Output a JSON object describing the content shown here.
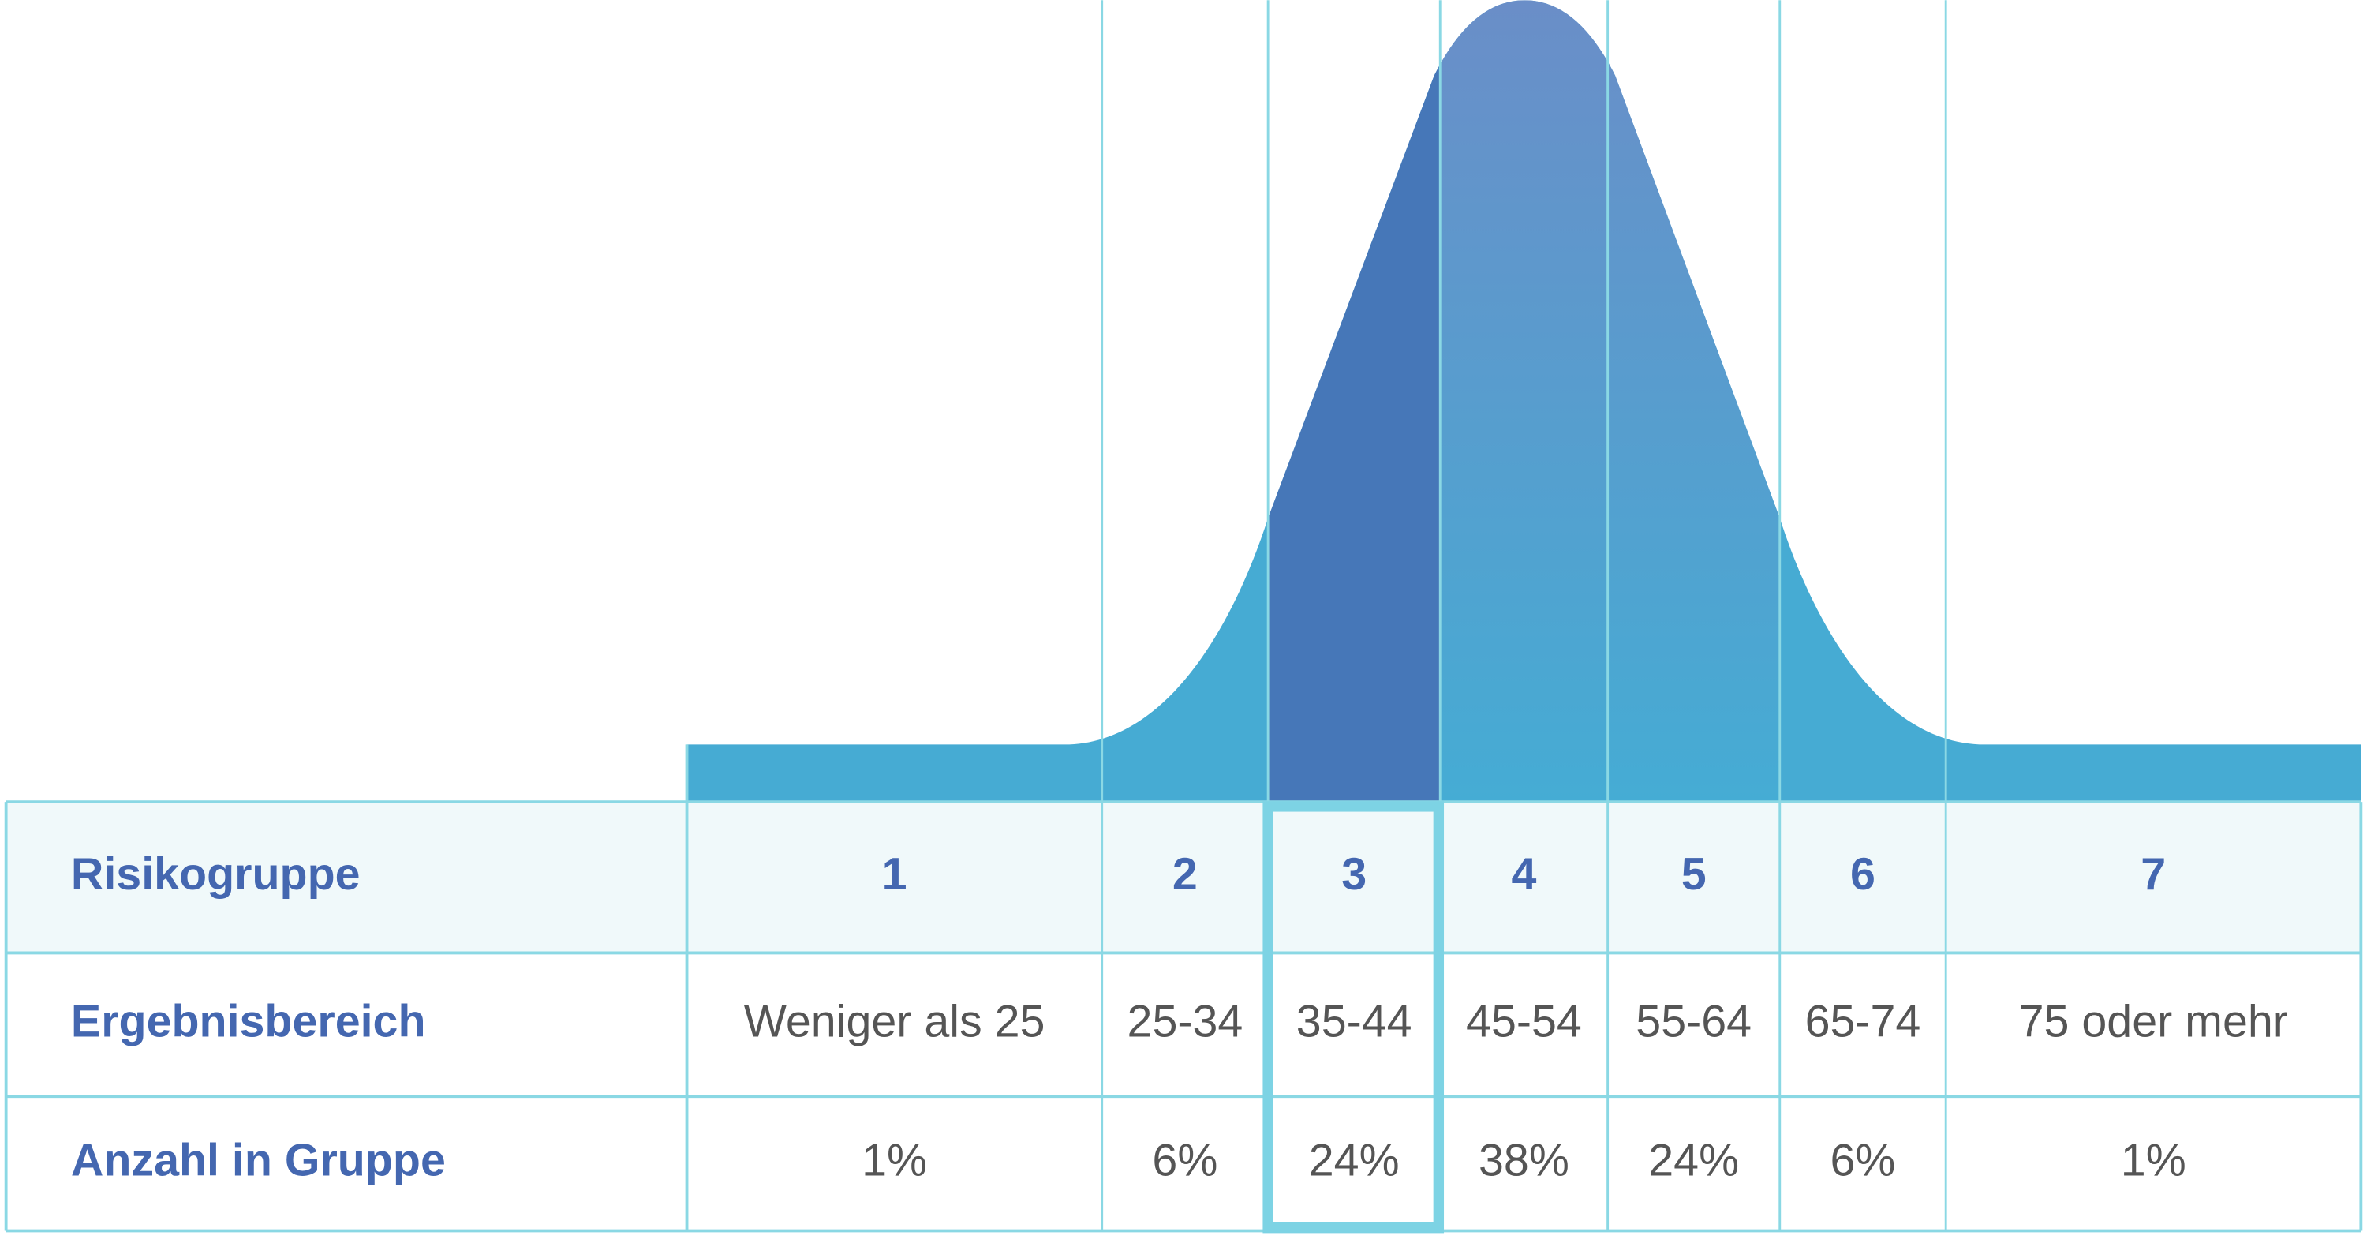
{
  "table": {
    "row_headers": [
      "Risikogruppe",
      "Ergebnisbereich",
      "Anzahl in Gruppe"
    ],
    "columns": [
      {
        "group": "1",
        "range": "Weniger als 25",
        "share": "1%"
      },
      {
        "group": "2",
        "range": "25-34",
        "share": "6%"
      },
      {
        "group": "3",
        "range": "35-44",
        "share": "24%"
      },
      {
        "group": "4",
        "range": "45-54",
        "share": "38%"
      },
      {
        "group": "5",
        "range": "55-64",
        "share": "24%"
      },
      {
        "group": "6",
        "range": "65-74",
        "share": "6%"
      },
      {
        "group": "7",
        "range": "75 oder mehr",
        "share": "1%"
      }
    ]
  }
}
